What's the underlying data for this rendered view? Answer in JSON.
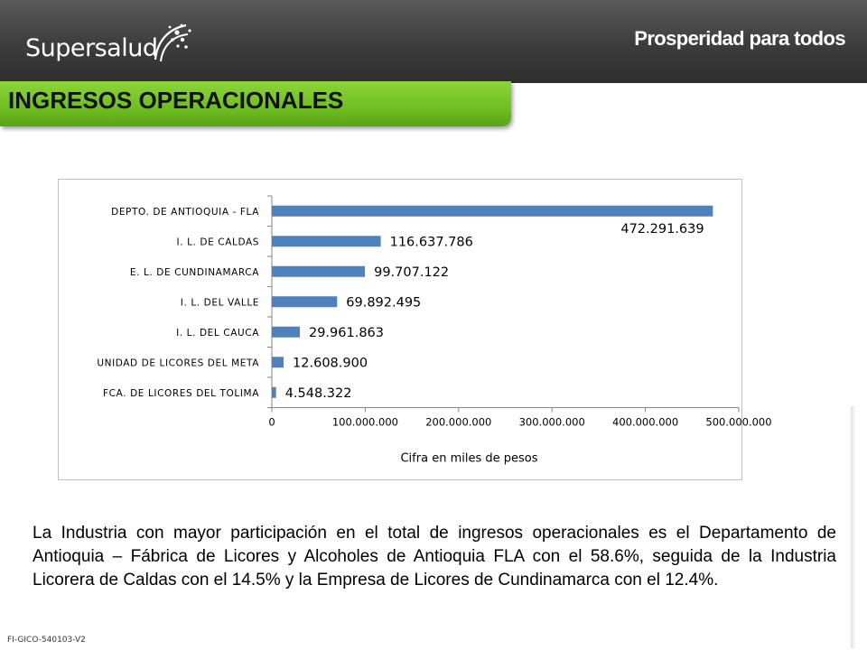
{
  "header": {
    "logo_text": "Supersalud",
    "logo_icon": "supersalud-sparkle-icon",
    "slogan": "Prosperidad para todos"
  },
  "title": "INGRESOS OPERACIONALES",
  "chart_data": {
    "type": "bar",
    "orientation": "horizontal",
    "categories": [
      "DEPTO. DE ANTIOQUIA - FLA",
      "I. L. DE CALDAS",
      "E. L. DE CUNDINAMARCA",
      "I. L. DEL VALLE",
      "I. L. DEL CAUCA",
      "UNIDAD DE LICORES DEL META",
      "FCA. DE LICORES DEL TOLIMA"
    ],
    "values": [
      472291639,
      116637786,
      99707122,
      69892495,
      29961863,
      12608900,
      4548322
    ],
    "data_labels": [
      "472.291.639",
      "116.637.786",
      "99.707.122",
      "69.892.495",
      "29.961.863",
      "12.608.900",
      "4.548.322"
    ],
    "xlim": [
      0,
      500000000
    ],
    "xticks": [
      0,
      100000000,
      200000000,
      300000000,
      400000000,
      500000000
    ],
    "xtick_labels": [
      "0",
      "100.000.000",
      "200.000.000",
      "300.000.000",
      "400.000.000",
      "500.000.000"
    ],
    "xlabel": "Cifra en miles de pesos",
    "ylabel": "",
    "title": "",
    "bar_color": "#4f81bd",
    "grid": false,
    "legend": "none"
  },
  "summary": "La Industria con mayor participación en el total de ingresos operacionales es el Departamento de Antioquia – Fábrica de Licores y Alcoholes de Antioquia FLA con el 58.6%, seguida de la Industria Licorera de Caldas con el 14.5% y la Empresa de Licores de Cundinamarca con el 12.4%.",
  "footer_code": "FI-GICO-540103-V2"
}
